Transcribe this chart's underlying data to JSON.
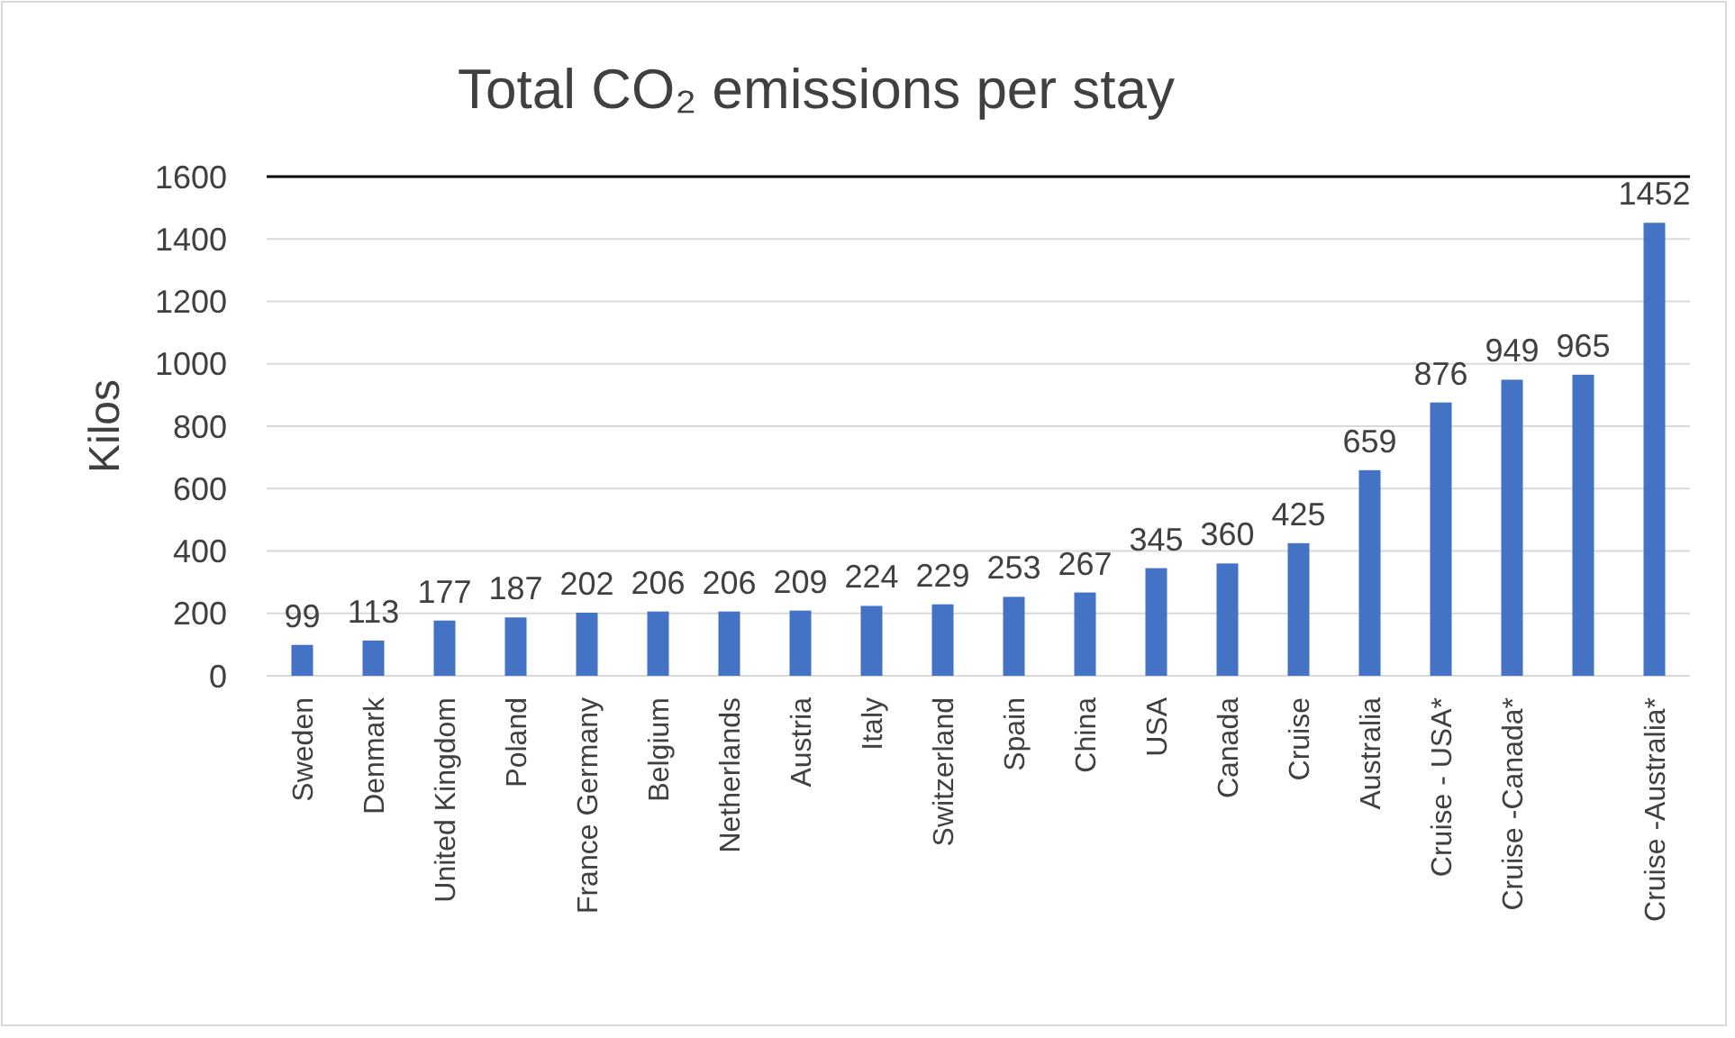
{
  "chart_data": {
    "type": "bar",
    "title": "Total CO₂ emissions per stay",
    "ylabel": "Kilos",
    "categories": [
      "Sweden",
      "Denmark",
      "United Kingdom",
      "Poland",
      "France Germany",
      "Belgium",
      "Netherlands",
      "Austria",
      "Italy",
      "Switzerland",
      "Spain",
      "China",
      "USA",
      "Canada",
      "Cruise",
      "Australia",
      "Cruise - USA*",
      "Cruise -Canada*",
      null,
      "Cruise -Australia*"
    ],
    "values": [
      99,
      113,
      177,
      187,
      202,
      206,
      206,
      209,
      224,
      229,
      253,
      267,
      345,
      360,
      425,
      659,
      876,
      949,
      965,
      1452
    ],
    "color": "#4472c4",
    "ylim": [
      0,
      1600
    ],
    "yticks": [
      0,
      200,
      400,
      600,
      800,
      1000,
      1200,
      1400,
      1600
    ],
    "grid": "y",
    "data_labels": true
  }
}
